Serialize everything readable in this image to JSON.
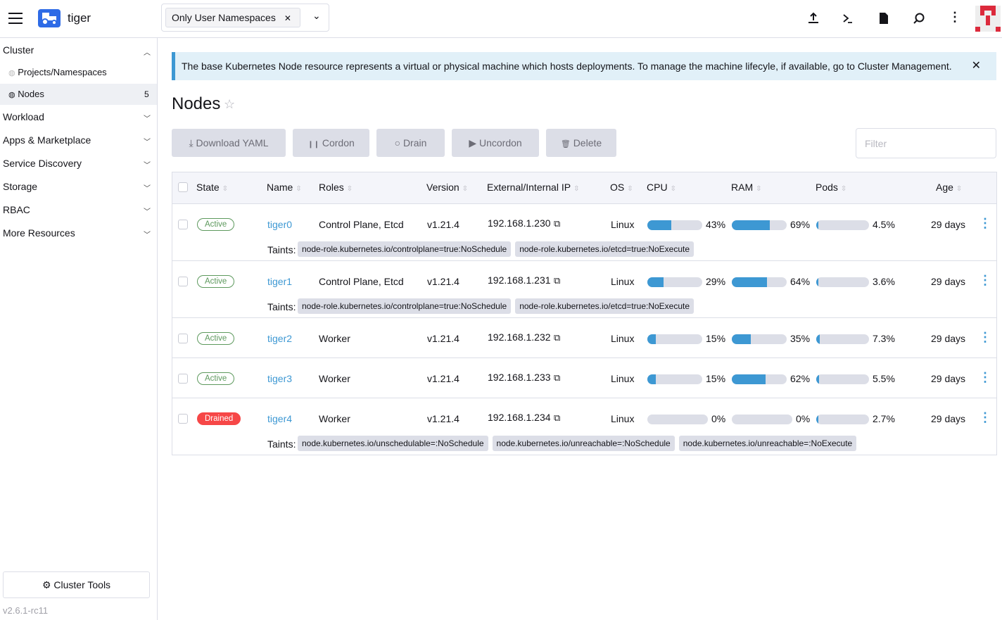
{
  "header": {
    "cluster_name": "tiger",
    "namespace_filter": "Only User Namespaces",
    "icons": [
      "upload-icon",
      "terminal-icon",
      "file-icon",
      "search-icon",
      "more-vertical-icon"
    ]
  },
  "sidebar": {
    "cluster": "Cluster",
    "sub_items": [
      {
        "label": "Projects/Namespaces"
      },
      {
        "label": "Nodes",
        "count": "5"
      }
    ],
    "groups": [
      "Workload",
      "Apps & Marketplace",
      "Service Discovery",
      "Storage",
      "RBAC",
      "More Resources"
    ],
    "cluster_tools": "Cluster Tools",
    "version": "v2.6.1-rc11"
  },
  "banner": {
    "text": "The base Kubernetes Node resource represents a virtual or physical machine which hosts deployments. To manage the machine lifecyle, if available, go to Cluster Management."
  },
  "page": {
    "title": "Nodes"
  },
  "toolbar": {
    "download": "Download YAML",
    "cordon": "Cordon",
    "drain": "Drain",
    "uncordon": "Uncordon",
    "delete": "Delete",
    "filter_placeholder": "Filter"
  },
  "table": {
    "headers": [
      "State",
      "Name",
      "Roles",
      "Version",
      "External/Internal IP",
      "OS",
      "CPU",
      "RAM",
      "Pods",
      "Age"
    ],
    "taints_label": "Taints:",
    "rows": [
      {
        "state": "Active",
        "name": "tiger0",
        "roles": "Control Plane, Etcd",
        "version": "v1.21.4",
        "ip": "192.168.1.230",
        "os": "Linux",
        "cpu": "43%",
        "cpu_pct": 43,
        "ram": "69%",
        "ram_pct": 69,
        "pods": "4.5%",
        "pods_pct": 4.5,
        "age": "29 days",
        "taints": [
          "node-role.kubernetes.io/controlplane=true:NoSchedule",
          "node-role.kubernetes.io/etcd=true:NoExecute"
        ]
      },
      {
        "state": "Active",
        "name": "tiger1",
        "roles": "Control Plane, Etcd",
        "version": "v1.21.4",
        "ip": "192.168.1.231",
        "os": "Linux",
        "cpu": "29%",
        "cpu_pct": 29,
        "ram": "64%",
        "ram_pct": 64,
        "pods": "3.6%",
        "pods_pct": 3.6,
        "age": "29 days",
        "taints": [
          "node-role.kubernetes.io/controlplane=true:NoSchedule",
          "node-role.kubernetes.io/etcd=true:NoExecute"
        ]
      },
      {
        "state": "Active",
        "name": "tiger2",
        "roles": "Worker",
        "version": "v1.21.4",
        "ip": "192.168.1.232",
        "os": "Linux",
        "cpu": "15%",
        "cpu_pct": 15,
        "ram": "35%",
        "ram_pct": 35,
        "pods": "7.3%",
        "pods_pct": 7.3,
        "age": "29 days",
        "taints": []
      },
      {
        "state": "Active",
        "name": "tiger3",
        "roles": "Worker",
        "version": "v1.21.4",
        "ip": "192.168.1.233",
        "os": "Linux",
        "cpu": "15%",
        "cpu_pct": 15,
        "ram": "62%",
        "ram_pct": 62,
        "pods": "5.5%",
        "pods_pct": 5.5,
        "age": "29 days",
        "taints": []
      },
      {
        "state": "Drained",
        "name": "tiger4",
        "roles": "Worker",
        "version": "v1.21.4",
        "ip": "192.168.1.234",
        "os": "Linux",
        "cpu": "0%",
        "cpu_pct": 0,
        "ram": "0%",
        "ram_pct": 0,
        "pods": "2.7%",
        "pods_pct": 2.7,
        "age": "29 days",
        "taints": [
          "node.kubernetes.io/unschedulable=:NoSchedule",
          "node.kubernetes.io/unreachable=:NoSchedule",
          "node.kubernetes.io/unreachable=:NoExecute"
        ]
      }
    ]
  },
  "colors": {
    "accent": "#3d98d3",
    "active": "#5d995d",
    "drained": "#f64747",
    "bar_track": "#dcdee7"
  }
}
